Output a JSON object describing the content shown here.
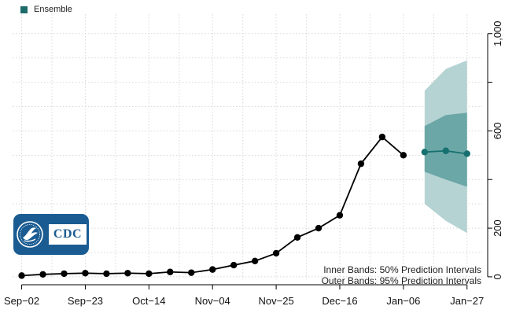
{
  "legend": {
    "label": "Ensemble",
    "swatch_color": "#1e6b6b"
  },
  "band_notes": {
    "inner": "Inner Bands: 50% Prediction Intervals",
    "outer": "Outer Bands: 95% Prediction Intervals"
  },
  "logo": {
    "text": "CDC",
    "icon": "hhs-eagle-seal-icon",
    "background_color": "#1a5c92"
  },
  "colors": {
    "observed": "#000000",
    "forecast": "#15706f",
    "band_inner": "#5f9f9f",
    "band_outer": "#b6d3d3",
    "grid": "#d8d8d8"
  },
  "chart_data": {
    "type": "line",
    "title": "",
    "xlabel": "",
    "ylabel": "",
    "x_ticks": [
      "Sep−02",
      "Sep−23",
      "Oct−14",
      "Nov−04",
      "Nov−25",
      "Dec−16",
      "Jan−06",
      "Jan−27"
    ],
    "y_ticks": [
      "0",
      "200",
      "600",
      "1,000"
    ],
    "y_tick_values": [
      0,
      200,
      600,
      1000
    ],
    "ylim": [
      -10,
      1080
    ],
    "xlim": [
      "2023-08-30",
      "2024-02-01"
    ],
    "grid": true,
    "legend_position": "top-left",
    "series": [
      {
        "name": "",
        "role": "observed",
        "x": [
          "2023-09-02",
          "2023-09-09",
          "2023-09-16",
          "2023-09-23",
          "2023-09-30",
          "2023-10-07",
          "2023-10-14",
          "2023-10-21",
          "2023-10-28",
          "2023-11-04",
          "2023-11-11",
          "2023-11-18",
          "2023-11-25",
          "2023-12-02",
          "2023-12-09",
          "2023-12-16",
          "2023-12-23",
          "2023-12-30",
          "2024-01-06"
        ],
        "y": [
          5,
          10,
          13,
          15,
          13,
          15,
          13,
          20,
          17,
          30,
          48,
          65,
          97,
          162,
          200,
          253,
          465,
          575,
          500
        ]
      },
      {
        "name": "Ensemble",
        "role": "forecast",
        "x": [
          "2024-01-13",
          "2024-01-20",
          "2024-01-27"
        ],
        "y": [
          513,
          518,
          506
        ],
        "pi50_lower": [
          432,
          400,
          370
        ],
        "pi50_upper": [
          620,
          665,
          675
        ],
        "pi95_lower": [
          300,
          230,
          180
        ],
        "pi95_upper": [
          765,
          855,
          890
        ]
      }
    ]
  }
}
